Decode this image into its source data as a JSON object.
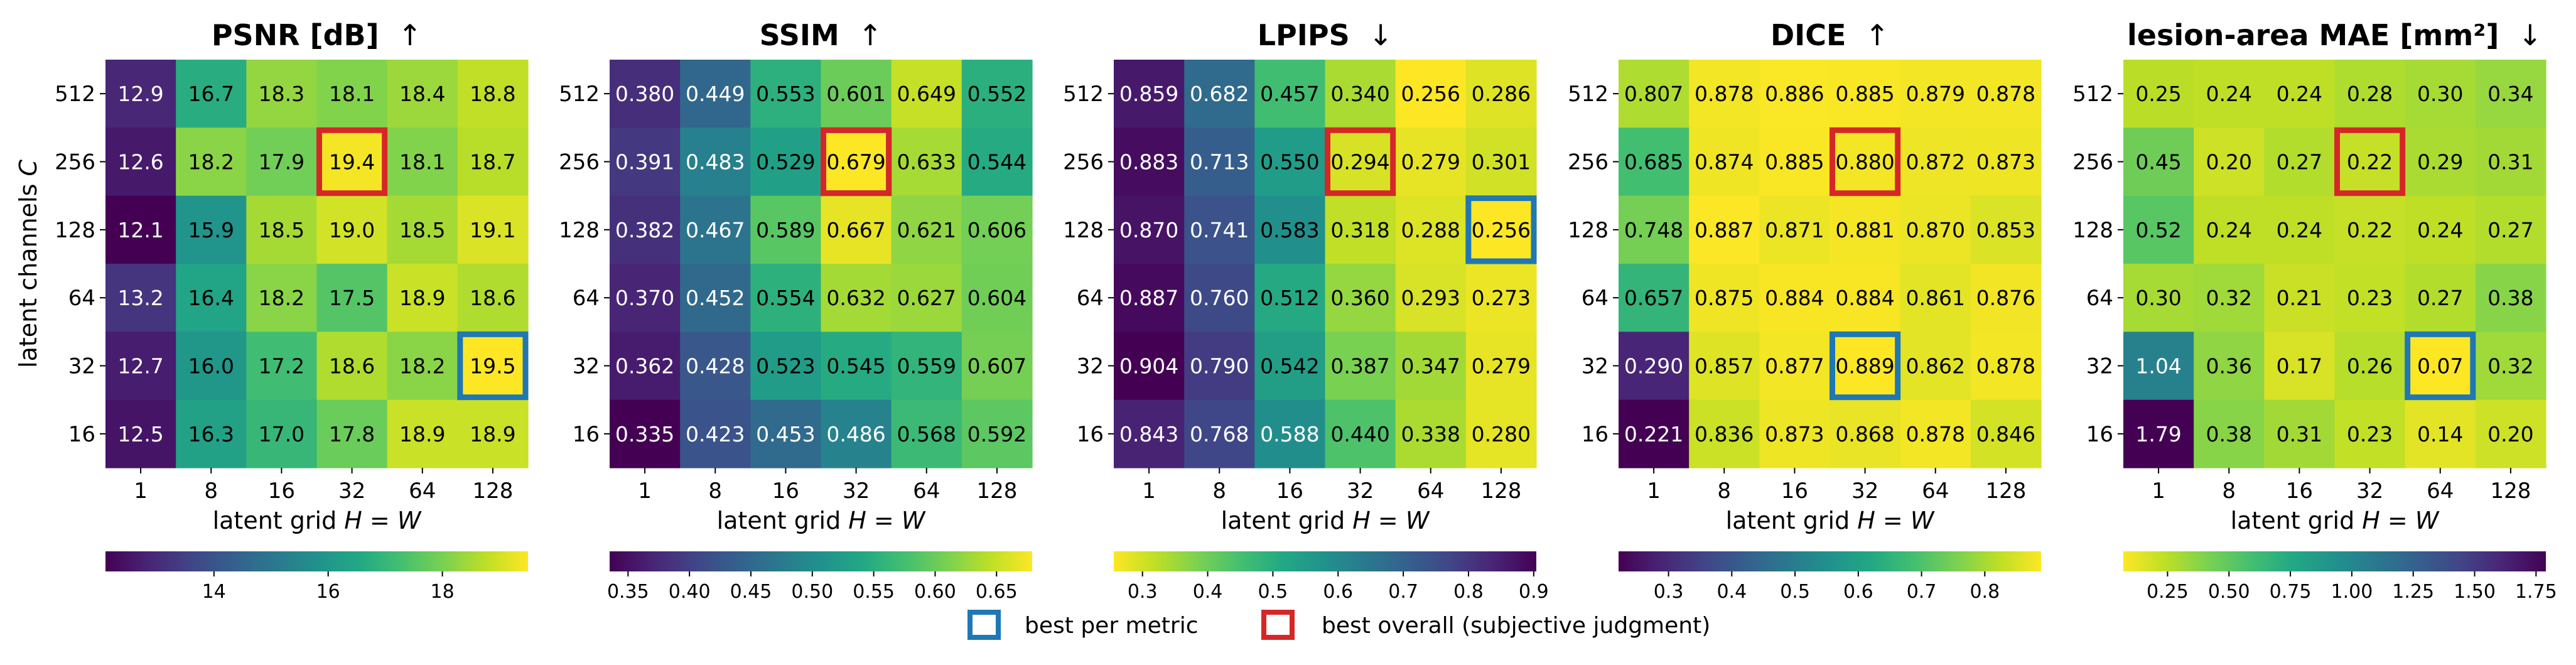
{
  "chart_data": [
    {
      "type": "heatmap",
      "title": "PSNR [dB]",
      "arrow": "↑",
      "xlabel": "latent grid H = W",
      "ylabel": "latent channels C",
      "x_categories": [
        "1",
        "8",
        "16",
        "32",
        "64",
        "128"
      ],
      "y_categories": [
        "512",
        "256",
        "128",
        "64",
        "32",
        "16"
      ],
      "values": [
        [
          12.9,
          16.7,
          18.3,
          18.1,
          18.4,
          18.8
        ],
        [
          12.6,
          18.2,
          17.9,
          19.4,
          18.1,
          18.7
        ],
        [
          12.1,
          15.9,
          18.5,
          19.0,
          18.5,
          19.1
        ],
        [
          13.2,
          16.4,
          18.2,
          17.5,
          18.9,
          18.6
        ],
        [
          12.7,
          16.0,
          17.2,
          18.6,
          18.2,
          19.5
        ],
        [
          12.5,
          16.3,
          17.0,
          17.8,
          18.9,
          18.9
        ]
      ],
      "decimals": 1,
      "colormap": "viridis",
      "reversed": false,
      "vmin": 12.1,
      "vmax": 19.5,
      "colorbar_ticks": [
        "14",
        "16",
        "18"
      ],
      "best_per_metric": [
        4,
        5
      ],
      "best_overall": [
        1,
        3
      ]
    },
    {
      "type": "heatmap",
      "title": "SSIM",
      "arrow": "↑",
      "xlabel": "latent grid H = W",
      "x_categories": [
        "1",
        "8",
        "16",
        "32",
        "64",
        "128"
      ],
      "y_categories": [
        "512",
        "256",
        "128",
        "64",
        "32",
        "16"
      ],
      "values": [
        [
          0.38,
          0.449,
          0.553,
          0.601,
          0.649,
          0.552
        ],
        [
          0.391,
          0.483,
          0.529,
          0.679,
          0.633,
          0.544
        ],
        [
          0.382,
          0.467,
          0.589,
          0.667,
          0.621,
          0.606
        ],
        [
          0.37,
          0.452,
          0.554,
          0.632,
          0.627,
          0.604
        ],
        [
          0.362,
          0.428,
          0.523,
          0.545,
          0.559,
          0.607
        ],
        [
          0.335,
          0.423,
          0.453,
          0.486,
          0.568,
          0.592
        ]
      ],
      "decimals": 3,
      "colormap": "viridis",
      "reversed": false,
      "vmin": 0.335,
      "vmax": 0.679,
      "colorbar_ticks": [
        "0.35",
        "0.40",
        "0.45",
        "0.50",
        "0.55",
        "0.60",
        "0.65"
      ],
      "best_per_metric": [
        1,
        3
      ],
      "best_overall": [
        1,
        3
      ]
    },
    {
      "type": "heatmap",
      "title": "LPIPS",
      "arrow": "↓",
      "xlabel": "latent grid H = W",
      "x_categories": [
        "1",
        "8",
        "16",
        "32",
        "64",
        "128"
      ],
      "y_categories": [
        "512",
        "256",
        "128",
        "64",
        "32",
        "16"
      ],
      "values": [
        [
          0.859,
          0.682,
          0.457,
          0.34,
          0.256,
          0.286
        ],
        [
          0.883,
          0.713,
          0.55,
          0.294,
          0.279,
          0.301
        ],
        [
          0.87,
          0.741,
          0.583,
          0.318,
          0.288,
          0.256
        ],
        [
          0.887,
          0.76,
          0.512,
          0.36,
          0.293,
          0.273
        ],
        [
          0.904,
          0.79,
          0.542,
          0.387,
          0.347,
          0.279
        ],
        [
          0.843,
          0.768,
          0.588,
          0.44,
          0.338,
          0.28
        ]
      ],
      "decimals": 3,
      "colormap": "viridis",
      "reversed": true,
      "vmin": 0.256,
      "vmax": 0.904,
      "colorbar_ticks": [
        "0.3",
        "0.4",
        "0.5",
        "0.6",
        "0.7",
        "0.8",
        "0.9"
      ],
      "best_per_metric": [
        2,
        5
      ],
      "best_overall": [
        1,
        3
      ]
    },
    {
      "type": "heatmap",
      "title": "DICE",
      "arrow": "↑",
      "xlabel": "latent grid H = W",
      "x_categories": [
        "1",
        "8",
        "16",
        "32",
        "64",
        "128"
      ],
      "y_categories": [
        "512",
        "256",
        "128",
        "64",
        "32",
        "16"
      ],
      "values": [
        [
          0.807,
          0.878,
          0.886,
          0.885,
          0.879,
          0.878
        ],
        [
          0.685,
          0.874,
          0.885,
          0.88,
          0.872,
          0.873
        ],
        [
          0.748,
          0.887,
          0.871,
          0.881,
          0.87,
          0.853
        ],
        [
          0.657,
          0.875,
          0.884,
          0.884,
          0.861,
          0.876
        ],
        [
          0.29,
          0.857,
          0.877,
          0.889,
          0.862,
          0.878
        ],
        [
          0.221,
          0.836,
          0.873,
          0.868,
          0.878,
          0.846
        ]
      ],
      "decimals": 3,
      "colormap": "viridis",
      "reversed": false,
      "vmin": 0.221,
      "vmax": 0.889,
      "colorbar_ticks": [
        "0.3",
        "0.4",
        "0.5",
        "0.6",
        "0.7",
        "0.8"
      ],
      "best_per_metric": [
        4,
        3
      ],
      "best_overall": [
        1,
        3
      ]
    },
    {
      "type": "heatmap",
      "title": "lesion-area MAE [mm²]",
      "arrow": "↓",
      "xlabel": "latent grid H = W",
      "x_categories": [
        "1",
        "8",
        "16",
        "32",
        "64",
        "128"
      ],
      "y_categories": [
        "512",
        "256",
        "128",
        "64",
        "32",
        "16"
      ],
      "values": [
        [
          0.25,
          0.24,
          0.24,
          0.28,
          0.3,
          0.34
        ],
        [
          0.45,
          0.2,
          0.27,
          0.22,
          0.29,
          0.31
        ],
        [
          0.52,
          0.24,
          0.24,
          0.22,
          0.24,
          0.27
        ],
        [
          0.3,
          0.32,
          0.21,
          0.23,
          0.27,
          0.38
        ],
        [
          1.04,
          0.36,
          0.17,
          0.26,
          0.07,
          0.32
        ],
        [
          1.79,
          0.38,
          0.31,
          0.23,
          0.14,
          0.2
        ]
      ],
      "decimals": 2,
      "colormap": "viridis",
      "reversed": true,
      "vmin": 0.07,
      "vmax": 1.79,
      "colorbar_ticks": [
        "0.25",
        "0.50",
        "0.75",
        "1.00",
        "1.25",
        "1.50",
        "1.75"
      ],
      "best_per_metric": [
        4,
        4
      ],
      "best_overall": [
        1,
        3
      ]
    }
  ],
  "legend": {
    "best_per_metric": "best per metric",
    "best_overall": "best overall (subjective judgment)",
    "best_per_metric_color": "#1f77b4",
    "best_overall_color": "#d62728"
  }
}
